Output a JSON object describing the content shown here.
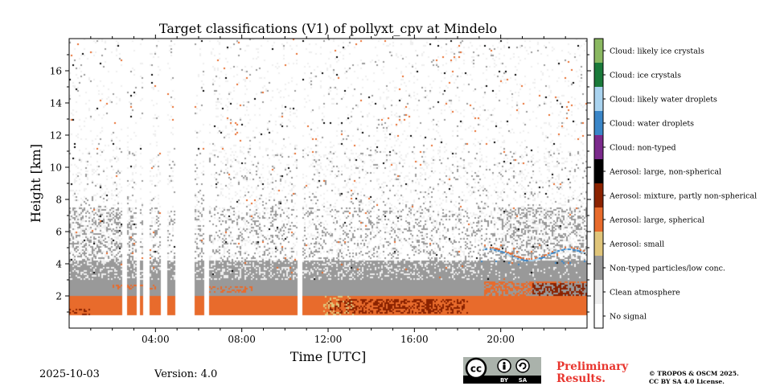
{
  "chart_data": {
    "type": "heatmap",
    "title": "Target classifications (V1) of pollyxt_cpv at Mindelo",
    "xlabel": "Time [UTC]",
    "ylabel": "Height [km]",
    "xlim": [
      0,
      24
    ],
    "ylim": [
      0,
      18
    ],
    "x_ticks": [
      {
        "value": 4,
        "label": "04:00"
      },
      {
        "value": 8,
        "label": "08:00"
      },
      {
        "value": 12,
        "label": "12:00"
      },
      {
        "value": 16,
        "label": "16:00"
      },
      {
        "value": 20,
        "label": "20:00"
      }
    ],
    "y_ticks": [
      {
        "value": 2,
        "label": "2"
      },
      {
        "value": 4,
        "label": "4"
      },
      {
        "value": 6,
        "label": "6"
      },
      {
        "value": 8,
        "label": "8"
      },
      {
        "value": 10,
        "label": "10"
      },
      {
        "value": 12,
        "label": "12"
      },
      {
        "value": 14,
        "label": "14"
      },
      {
        "value": 16,
        "label": "16"
      }
    ],
    "classes": [
      {
        "label": "No signal",
        "color": "#ffffff"
      },
      {
        "label": "Clean atmosphere",
        "color": "#eeeeee"
      },
      {
        "label": "Non-typed particles/low conc.",
        "color": "#999999"
      },
      {
        "label": "Aerosol: small",
        "color": "#e0c57a"
      },
      {
        "label": "Aerosol: large, spherical",
        "color": "#e86b2c"
      },
      {
        "label": "Aerosol: mixture, partly non-spherical",
        "color": "#8b2200"
      },
      {
        "label": "Aerosol: large, non-spherical",
        "color": "#000000"
      },
      {
        "label": "Cloud: non-typed",
        "color": "#7b2a8c"
      },
      {
        "label": "Cloud: water droplets",
        "color": "#3a86c8"
      },
      {
        "label": "Cloud: likely water droplets",
        "color": "#a9d3ef"
      },
      {
        "label": "Cloud: ice crystals",
        "color": "#1a7a3a"
      },
      {
        "label": "Cloud: likely ice crystals",
        "color": "#8ab861"
      }
    ],
    "signal_gaps_hours": [
      [
        2.45,
        2.65
      ],
      [
        3.1,
        3.25
      ],
      [
        3.45,
        3.7
      ],
      [
        4.25,
        4.55
      ],
      [
        4.9,
        5.8
      ],
      [
        6.25,
        6.45
      ],
      [
        10.55,
        10.8
      ]
    ],
    "bottom_no_signal_km": 0.8
  },
  "footer": {
    "date": "2025-10-03",
    "version": "Version: 4.0",
    "preliminary_line1": "Preliminary",
    "preliminary_line2": "Results.",
    "copyright_line1": "© TROPOS & OSCM 2025.",
    "copyright_line2": "CC BY SA 4.0 License.",
    "license_badge": {
      "main": "cc",
      "by": "BY",
      "sa": "SA"
    }
  }
}
